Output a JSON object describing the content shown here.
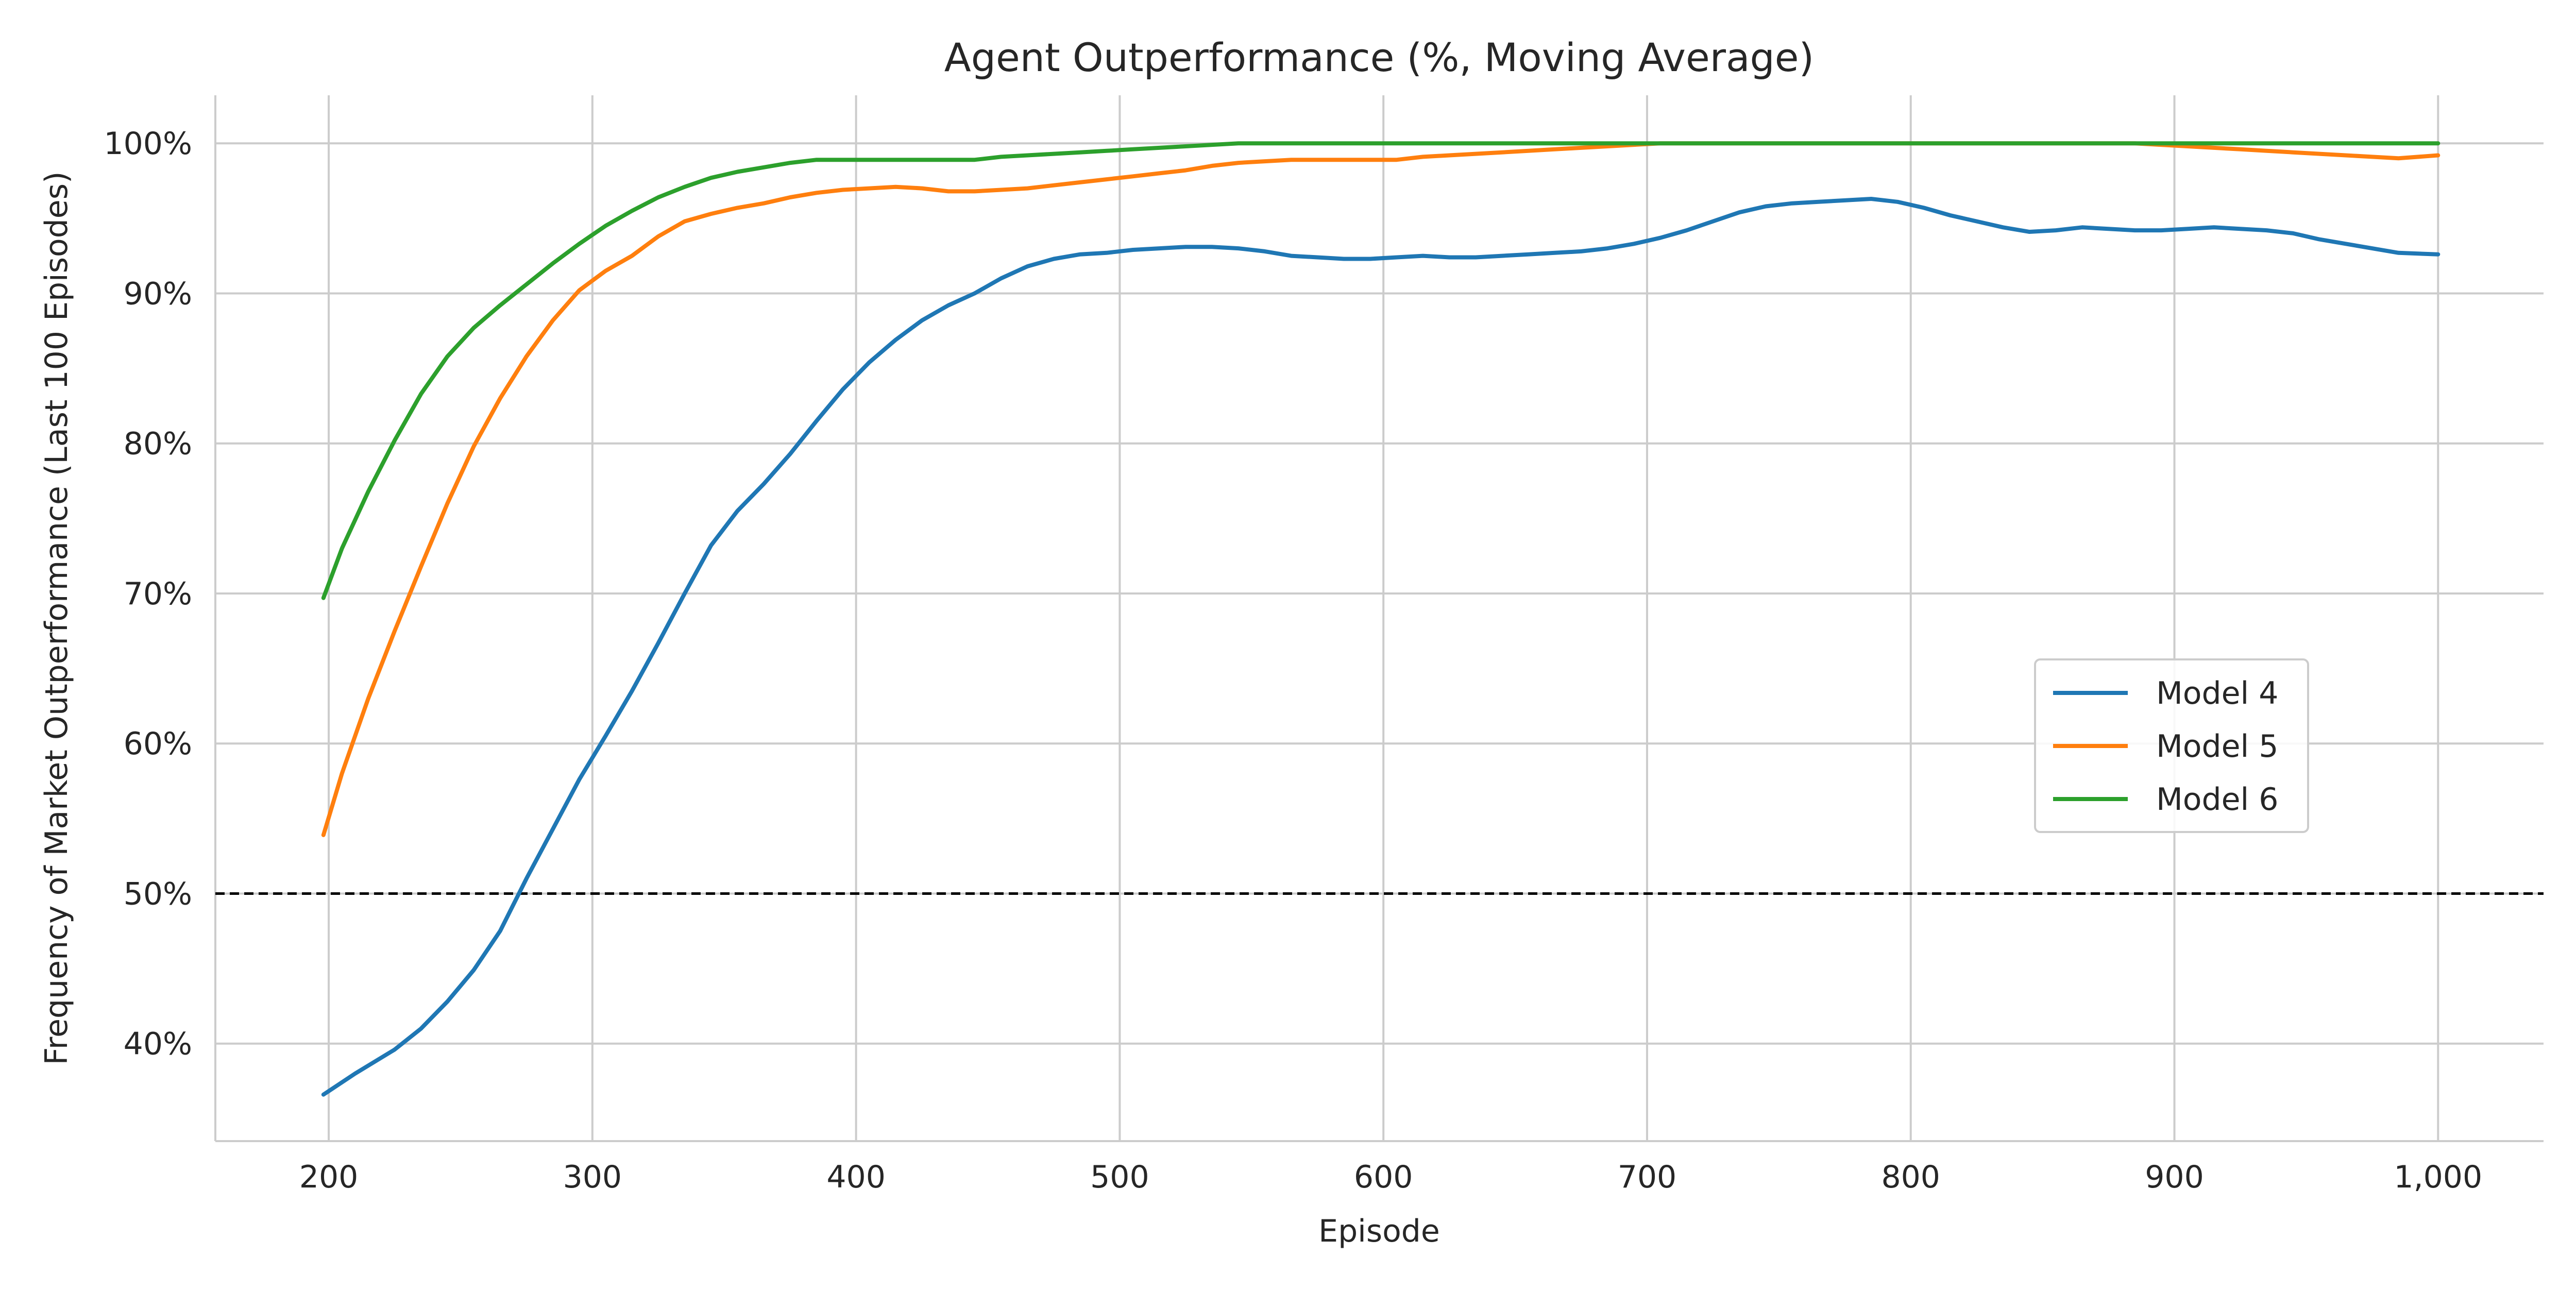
{
  "chart_data": {
    "type": "line",
    "title": "Agent Outperformance (%, Moving Average)",
    "xlabel": "Episode",
    "ylabel": "Frequency of Market Outperformance (Last 100 Episodes)",
    "xlim": [
      157,
      1040
    ],
    "ylim": [
      33.5,
      103.2
    ],
    "x_ticks": [
      200,
      300,
      400,
      500,
      600,
      700,
      800,
      900,
      1000
    ],
    "x_tick_labels": [
      "200",
      "300",
      "400",
      "500",
      "600",
      "700",
      "800",
      "900",
      "1,000"
    ],
    "y_ticks": [
      40,
      50,
      60,
      70,
      80,
      90,
      100
    ],
    "y_tick_labels": [
      "40%",
      "50%",
      "60%",
      "70%",
      "80%",
      "90%",
      "100%"
    ],
    "grid": true,
    "legend_position": "center-right",
    "reference_line": {
      "y": 50,
      "style": "dashed",
      "color": "#000000"
    },
    "series": [
      {
        "name": "Model 4",
        "color": "#1f77b4",
        "x": [
          198,
          210,
          225,
          235,
          245,
          255,
          265,
          275,
          285,
          295,
          305,
          315,
          325,
          335,
          345,
          355,
          365,
          375,
          385,
          395,
          405,
          415,
          425,
          435,
          445,
          455,
          465,
          475,
          485,
          495,
          505,
          515,
          525,
          535,
          545,
          555,
          565,
          575,
          585,
          595,
          605,
          615,
          625,
          635,
          645,
          655,
          665,
          675,
          685,
          695,
          705,
          715,
          725,
          735,
          745,
          755,
          765,
          775,
          785,
          795,
          805,
          815,
          825,
          835,
          845,
          855,
          865,
          875,
          885,
          895,
          905,
          915,
          925,
          935,
          945,
          955,
          965,
          975,
          985,
          1000
        ],
        "y": [
          36.6,
          38.0,
          39.6,
          41.0,
          42.8,
          44.9,
          47.5,
          51.0,
          54.3,
          57.6,
          60.5,
          63.5,
          66.7,
          70.0,
          73.2,
          75.5,
          77.3,
          79.3,
          81.5,
          83.6,
          85.4,
          86.9,
          88.2,
          89.2,
          90.0,
          91.0,
          91.8,
          92.3,
          92.6,
          92.7,
          92.9,
          93.0,
          93.1,
          93.1,
          93.0,
          92.8,
          92.5,
          92.4,
          92.3,
          92.3,
          92.4,
          92.5,
          92.4,
          92.4,
          92.5,
          92.6,
          92.7,
          92.8,
          93.0,
          93.3,
          93.7,
          94.2,
          94.8,
          95.4,
          95.8,
          96.0,
          96.1,
          96.2,
          96.3,
          96.1,
          95.7,
          95.2,
          94.8,
          94.4,
          94.1,
          94.2,
          94.4,
          94.3,
          94.2,
          94.2,
          94.3,
          94.4,
          94.3,
          94.2,
          94.0,
          93.6,
          93.3,
          93.0,
          92.7,
          92.6
        ]
      },
      {
        "name": "Model 5",
        "color": "#ff7f0e",
        "x": [
          198,
          205,
          215,
          225,
          235,
          245,
          255,
          265,
          275,
          285,
          295,
          305,
          315,
          325,
          335,
          345,
          355,
          365,
          375,
          385,
          395,
          405,
          415,
          425,
          435,
          445,
          455,
          465,
          475,
          485,
          495,
          505,
          515,
          525,
          535,
          545,
          555,
          565,
          575,
          585,
          595,
          605,
          615,
          625,
          635,
          645,
          655,
          665,
          675,
          685,
          695,
          705,
          715,
          725,
          735,
          745,
          755,
          765,
          775,
          785,
          795,
          805,
          815,
          825,
          835,
          845,
          855,
          865,
          875,
          885,
          895,
          905,
          915,
          925,
          935,
          945,
          955,
          965,
          975,
          985,
          1000
        ],
        "y": [
          53.9,
          58.0,
          63.0,
          67.5,
          71.8,
          76.0,
          79.8,
          83.0,
          85.8,
          88.2,
          90.2,
          91.5,
          92.5,
          93.8,
          94.8,
          95.3,
          95.7,
          96.0,
          96.4,
          96.7,
          96.9,
          97.0,
          97.1,
          97.0,
          96.8,
          96.8,
          96.9,
          97.0,
          97.2,
          97.4,
          97.6,
          97.8,
          98.0,
          98.2,
          98.5,
          98.7,
          98.8,
          98.9,
          98.9,
          98.9,
          98.9,
          98.9,
          99.1,
          99.2,
          99.3,
          99.4,
          99.5,
          99.6,
          99.7,
          99.8,
          99.9,
          100.0,
          100.0,
          100.0,
          100.0,
          100.0,
          100.0,
          100.0,
          100.0,
          100.0,
          100.0,
          100.0,
          100.0,
          100.0,
          100.0,
          100.0,
          100.0,
          100.0,
          100.0,
          100.0,
          99.9,
          99.8,
          99.7,
          99.6,
          99.5,
          99.4,
          99.3,
          99.2,
          99.1,
          99.0,
          99.2
        ]
      },
      {
        "name": "Model 6",
        "color": "#2ca02c",
        "x": [
          198,
          205,
          215,
          225,
          235,
          245,
          255,
          265,
          275,
          285,
          295,
          305,
          315,
          325,
          335,
          345,
          355,
          365,
          375,
          385,
          395,
          405,
          415,
          425,
          435,
          445,
          455,
          465,
          475,
          485,
          495,
          505,
          515,
          525,
          535,
          545,
          555,
          565,
          575,
          585,
          595,
          605,
          615,
          625,
          635,
          645,
          655,
          665,
          675,
          685,
          695,
          705,
          715,
          725,
          735,
          745,
          755,
          765,
          775,
          785,
          795,
          805,
          815,
          825,
          835,
          845,
          855,
          865,
          875,
          885,
          895,
          905,
          915,
          925,
          935,
          945,
          955,
          965,
          975,
          985,
          1000
        ],
        "y": [
          69.7,
          73.0,
          76.8,
          80.2,
          83.3,
          85.8,
          87.7,
          89.2,
          90.6,
          92.0,
          93.3,
          94.5,
          95.5,
          96.4,
          97.1,
          97.7,
          98.1,
          98.4,
          98.7,
          98.9,
          98.9,
          98.9,
          98.9,
          98.9,
          98.9,
          98.9,
          99.1,
          99.2,
          99.3,
          99.4,
          99.5,
          99.6,
          99.7,
          99.8,
          99.9,
          100.0,
          100.0,
          100.0,
          100.0,
          100.0,
          100.0,
          100.0,
          100.0,
          100.0,
          100.0,
          100.0,
          100.0,
          100.0,
          100.0,
          100.0,
          100.0,
          100.0,
          100.0,
          100.0,
          100.0,
          100.0,
          100.0,
          100.0,
          100.0,
          100.0,
          100.0,
          100.0,
          100.0,
          100.0,
          100.0,
          100.0,
          100.0,
          100.0,
          100.0,
          100.0,
          100.0,
          100.0,
          100.0,
          100.0,
          100.0,
          100.0,
          100.0,
          100.0,
          100.0,
          100.0,
          100.0
        ]
      }
    ]
  }
}
